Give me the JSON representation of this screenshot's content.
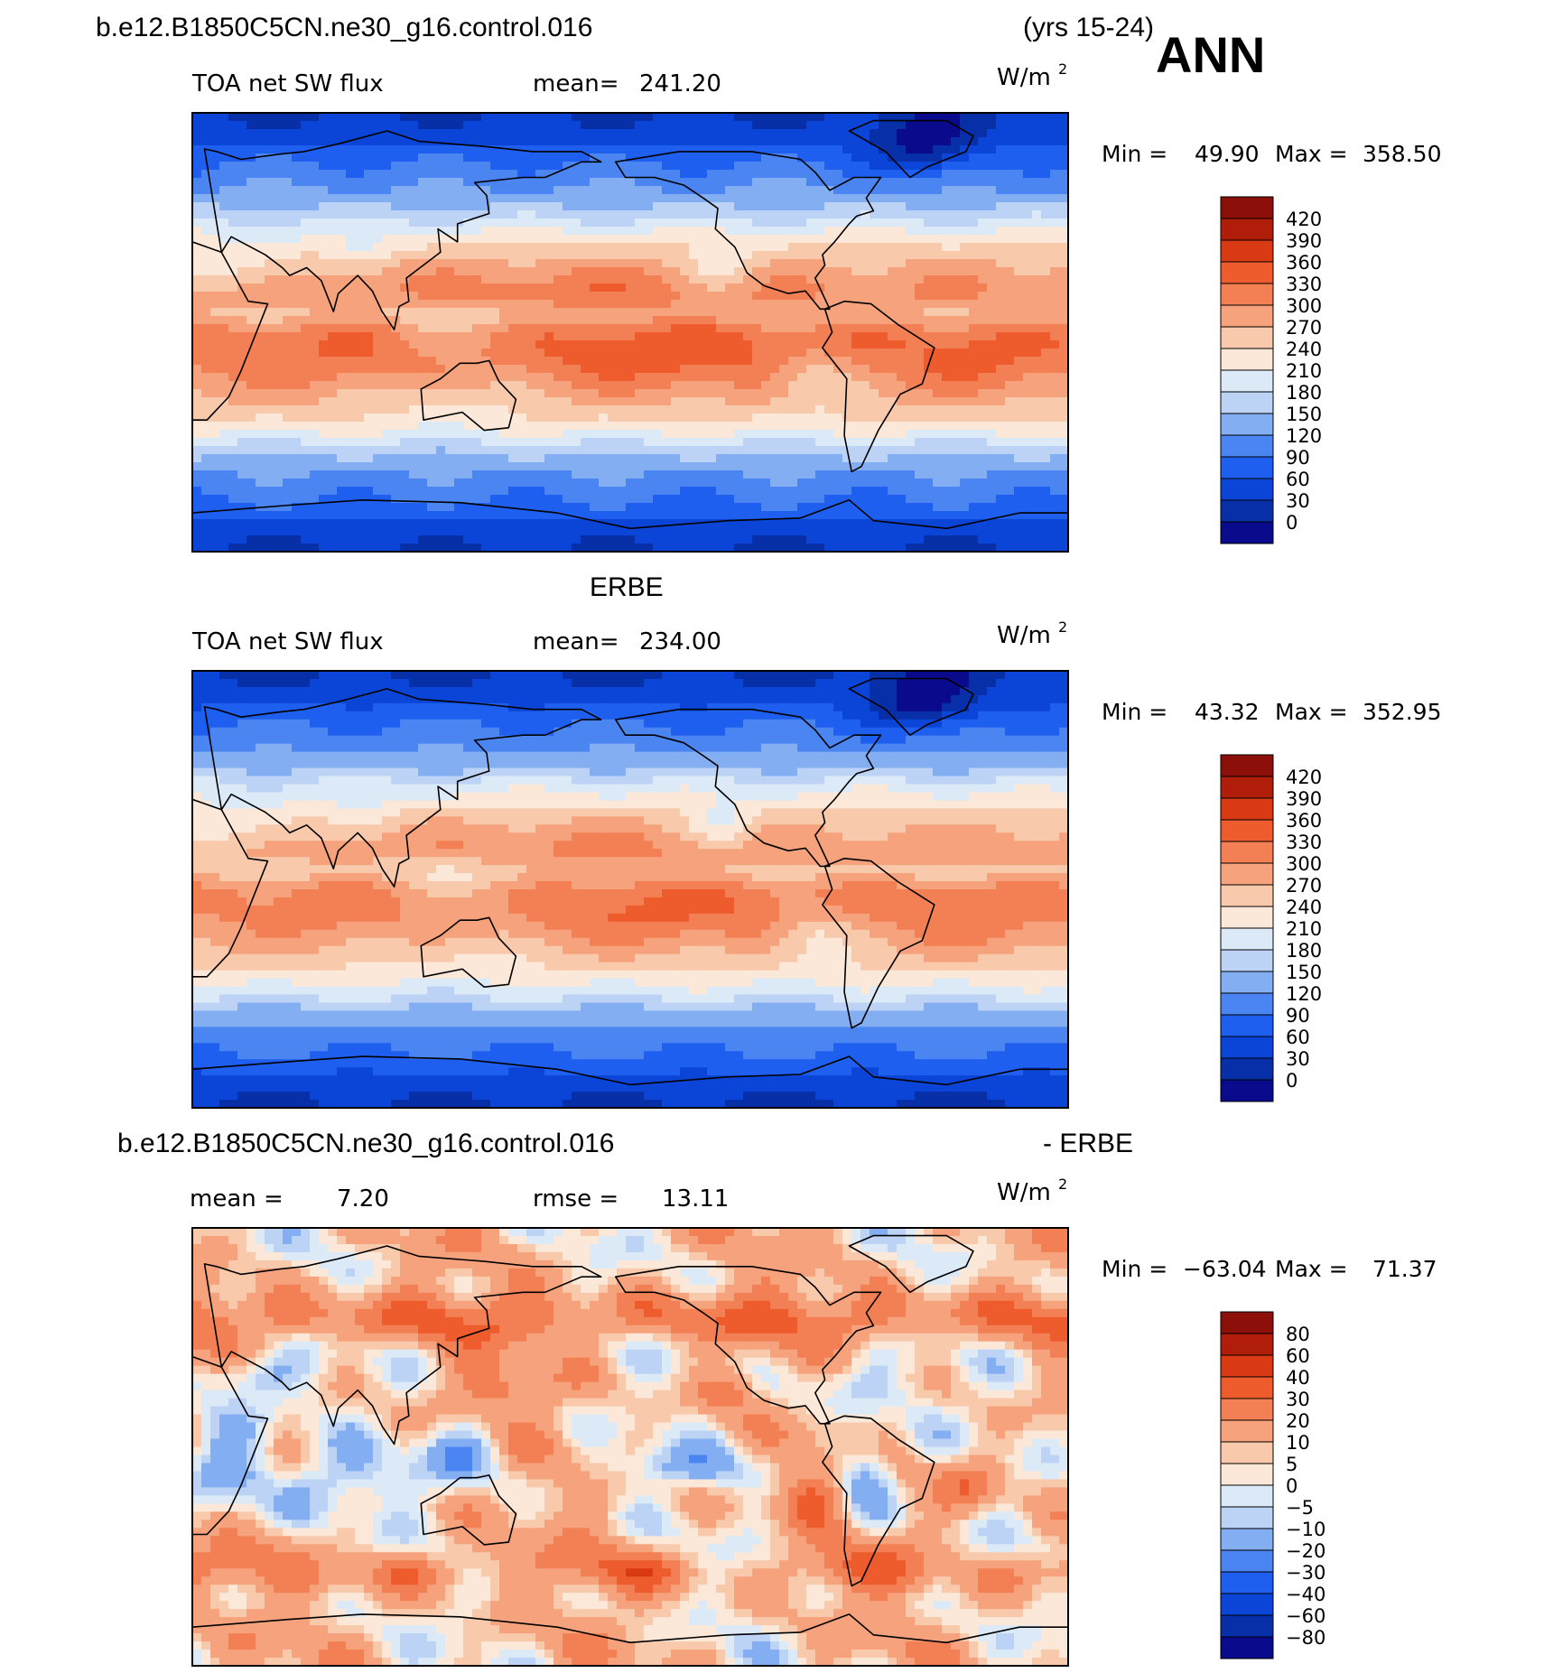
{
  "header": {
    "case_name": "b.e12.B1850C5CN.ne30_g16.control.016",
    "years": "(yrs 15-24)",
    "season": "ANN"
  },
  "colors": {
    "abs_scale": [
      "#0a0a8c",
      "#062fa8",
      "#0a45d8",
      "#1e5ff0",
      "#4a85f2",
      "#84aef2",
      "#bcd3f6",
      "#dceaf8",
      "#fbe8d8",
      "#f8c9ab",
      "#f6a27c",
      "#f38054",
      "#ee5c2e",
      "#d93a14",
      "#b01e0a",
      "#8c0f0a"
    ],
    "diff_scale": [
      "#0a0a8c",
      "#062fa8",
      "#0a45d8",
      "#1e5ff0",
      "#4a85f2",
      "#84aef2",
      "#bcd3f6",
      "#dceaf8",
      "#fbe8d8",
      "#f8c9ab",
      "#f6a27c",
      "#f38054",
      "#ee5c2e",
      "#d93a14",
      "#b01e0a",
      "#8c0f0a"
    ],
    "coastline": "#000000"
  },
  "chart_data": [
    {
      "type": "heatmap",
      "panel": "model",
      "title": "",
      "left_label": "TOA net SW flux",
      "mean_label": "mean=",
      "mean_value": "241.20",
      "units": "W/m",
      "units_exponent": "2",
      "min_label": "Min =",
      "min_value": "49.90",
      "max_label": "Max =",
      "max_value": "358.50",
      "colorbar_levels": [
        "420",
        "390",
        "360",
        "330",
        "300",
        "270",
        "240",
        "210",
        "180",
        "150",
        "120",
        "90",
        "60",
        "30",
        "0"
      ],
      "field": {
        "ptype": "abs",
        "scale": 1.0,
        "offset": 0
      }
    },
    {
      "type": "heatmap",
      "panel": "obs",
      "title": "ERBE",
      "left_label": "TOA net SW flux",
      "mean_label": "mean=",
      "mean_value": "234.00",
      "units": "W/m",
      "units_exponent": "2",
      "min_label": "Min =",
      "min_value": "43.32",
      "max_label": "Max =",
      "max_value": "352.95",
      "colorbar_levels": [
        "420",
        "390",
        "360",
        "330",
        "300",
        "270",
        "240",
        "210",
        "180",
        "150",
        "120",
        "90",
        "60",
        "30",
        "0"
      ],
      "field": {
        "ptype": "abs",
        "scale": 0.97,
        "offset": -3
      }
    },
    {
      "type": "heatmap",
      "panel": "difference",
      "title_left": "b.e12.B1850C5CN.ne30_g16.control.016",
      "title_right": "- ERBE",
      "mean_label": "mean =",
      "mean_value": "7.20",
      "rmse_label": "rmse =",
      "rmse_value": "13.11",
      "units": "W/m",
      "units_exponent": "2",
      "min_label": "Min =",
      "min_value": "−63.04",
      "max_label": "Max =",
      "max_value": "71.37",
      "colorbar_levels": [
        "80",
        "60",
        "40",
        "30",
        "20",
        "10",
        "5",
        "0",
        "−5",
        "−10",
        "−20",
        "−30",
        "−40",
        "−60",
        "−80"
      ],
      "field": {
        "ptype": "diff",
        "scale": 1.0,
        "offset": 0
      }
    }
  ]
}
